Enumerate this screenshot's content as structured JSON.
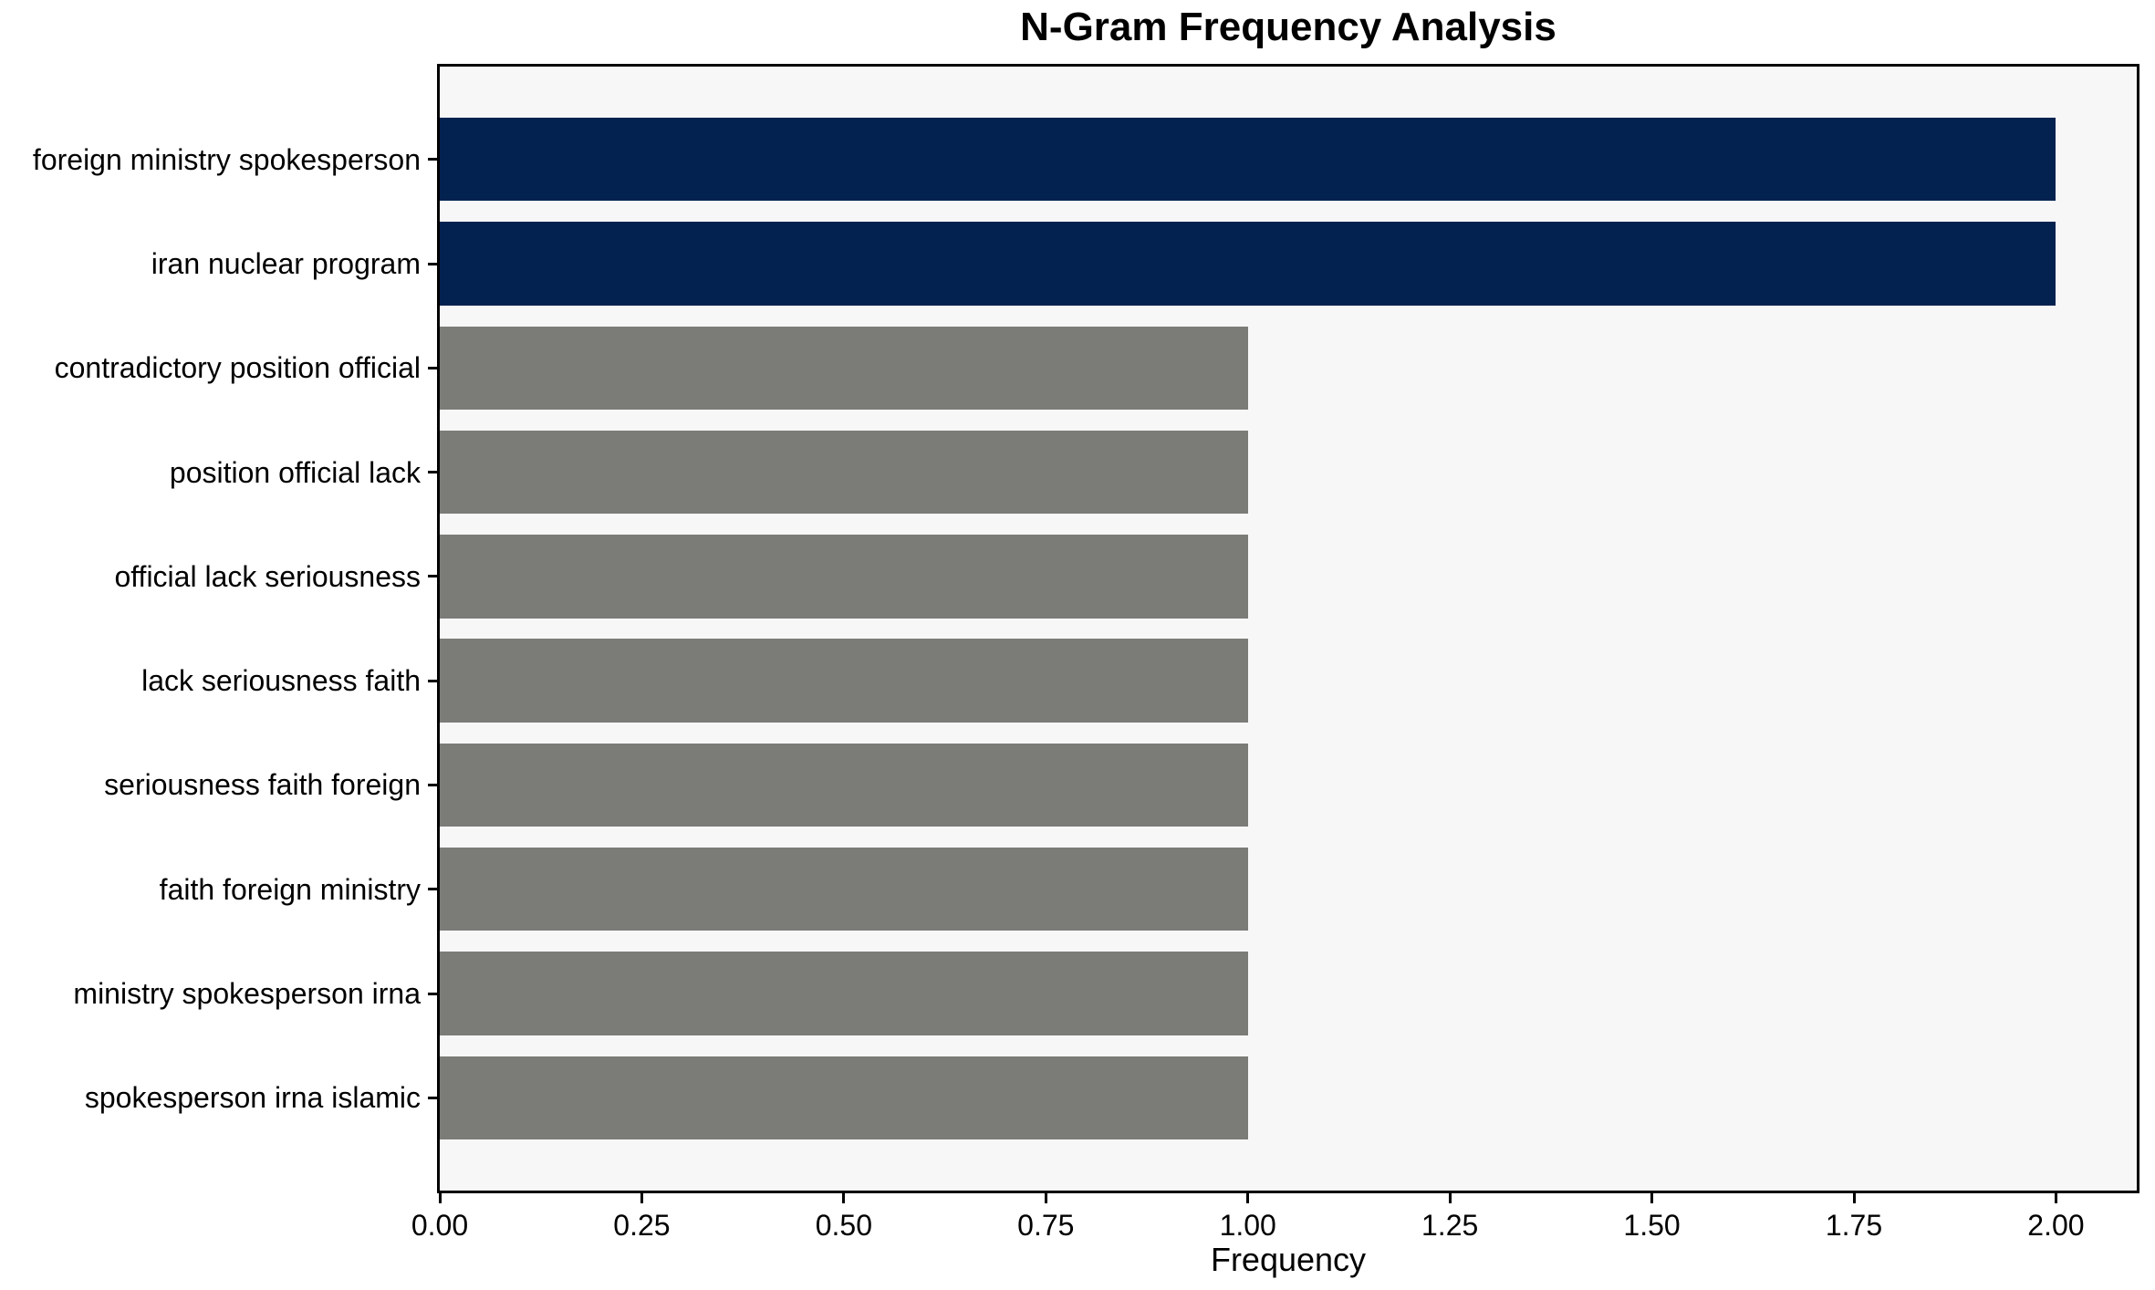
{
  "chart_data": {
    "type": "bar",
    "orientation": "horizontal",
    "title": "N-Gram Frequency Analysis",
    "xlabel": "Frequency",
    "ylabel": "",
    "categories": [
      "foreign ministry spokesperson",
      "iran nuclear program",
      "contradictory position official",
      "position official lack",
      "official lack seriousness",
      "lack seriousness faith",
      "seriousness faith foreign",
      "faith foreign ministry",
      "ministry spokesperson irna",
      "spokesperson irna islamic"
    ],
    "values": [
      2.0,
      2.0,
      1.0,
      1.0,
      1.0,
      1.0,
      1.0,
      1.0,
      1.0,
      1.0
    ],
    "bar_colors": [
      "#032250",
      "#032250",
      "#7b7b78",
      "#7b7b78",
      "#7b7b78",
      "#7b7b78",
      "#7b7b78",
      "#7b7b78",
      "#7b7b78",
      "#7b7b78"
    ],
    "xlim": [
      0,
      2.1
    ],
    "x_tick_values": [
      0,
      0.25,
      0.5,
      0.75,
      1.0,
      1.25,
      1.5,
      1.75,
      2.0
    ],
    "x_tick_labels": [
      "0.00",
      "0.25",
      "0.50",
      "0.75",
      "1.00",
      "1.25",
      "1.50",
      "1.75",
      "2.00"
    ],
    "grid": false,
    "legend": null,
    "colors": {
      "highlight": "#032250",
      "default": "#7b7b78",
      "plot_bg": "#f7f7f7",
      "figure_bg": "#ffffff",
      "spine": "#000000",
      "text": "#000000"
    }
  }
}
